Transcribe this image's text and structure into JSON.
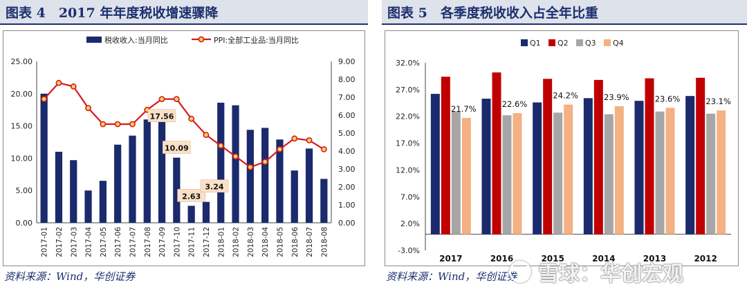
{
  "figure_left": {
    "title": "图表 4　2017 年年度税收增速骤降",
    "source": "资料来源：Wind，华创证券",
    "chart_data": {
      "type": "bar",
      "categories": [
        "2017-01",
        "2017-02",
        "2017-03",
        "2017-04",
        "2017-05",
        "2017-06",
        "2017-07",
        "2017-08",
        "2017-09",
        "2017-10",
        "2017-11",
        "2017-12",
        "2018-01",
        "2018-02",
        "2018-03",
        "2018-04",
        "2018-05",
        "2018-06",
        "2018-07",
        "2018-08"
      ],
      "series": [
        {
          "name": "税收收入:当月同比",
          "kind": "bar",
          "axis": "left",
          "color": "#1a2a6c",
          "values": [
            20.0,
            11.0,
            9.7,
            5.0,
            6.5,
            12.1,
            13.5,
            16.0,
            17.56,
            10.09,
            2.63,
            3.24,
            18.6,
            18.2,
            14.4,
            14.7,
            12.9,
            8.1,
            11.5,
            6.8
          ]
        },
        {
          "name": "PPI:全部工业品:当月同比",
          "kind": "line",
          "axis": "right",
          "color": "#d7191c",
          "values": [
            6.9,
            7.8,
            7.6,
            6.4,
            5.5,
            5.5,
            5.5,
            6.3,
            6.9,
            6.9,
            5.8,
            4.9,
            4.3,
            3.7,
            3.1,
            3.4,
            4.1,
            4.7,
            4.6,
            4.1
          ]
        }
      ],
      "callouts": [
        {
          "index": 8,
          "label": "17.56"
        },
        {
          "index": 9,
          "label": "10.09"
        },
        {
          "index": 10,
          "label": "2.63"
        },
        {
          "index": 11,
          "label": "3.24"
        }
      ],
      "ylim_left": [
        0,
        25
      ],
      "yticks_left": [
        "0.00",
        "5.00",
        "10.00",
        "15.00",
        "20.00",
        "25.00"
      ],
      "ylim_right": [
        0,
        9
      ],
      "yticks_right": [
        "0.00",
        "1.00",
        "2.00",
        "3.00",
        "4.00",
        "5.00",
        "6.00",
        "7.00",
        "8.00",
        "9.00"
      ],
      "legend_position": "top",
      "grid": false
    }
  },
  "figure_right": {
    "title": "图表 5　各季度税收收入占全年比重",
    "source": "资料来源：Wind，华创证券",
    "chart_data": {
      "type": "bar",
      "categories": [
        "2017",
        "2016",
        "2015",
        "2014",
        "2013",
        "2012"
      ],
      "series": [
        {
          "name": "Q1",
          "color": "#1a2a6c",
          "values": [
            26.2,
            25.3,
            24.6,
            25.4,
            24.9,
            25.8
          ]
        },
        {
          "name": "Q2",
          "color": "#c00000",
          "values": [
            29.4,
            30.2,
            29.0,
            28.8,
            29.1,
            29.2
          ]
        },
        {
          "name": "Q3",
          "color": "#a6a6a6",
          "values": [
            22.9,
            22.2,
            22.7,
            22.4,
            22.9,
            22.5
          ]
        },
        {
          "name": "Q4",
          "color": "#f4b183",
          "values": [
            21.7,
            22.6,
            24.2,
            23.9,
            23.6,
            23.1
          ]
        }
      ],
      "data_labels": [
        "21.7%",
        "22.6%",
        "24.2%",
        "23.9%",
        "23.6%",
        "23.1%"
      ],
      "ylim": [
        -3,
        32
      ],
      "yticks": [
        "-3.0%",
        "2.0%",
        "7.0%",
        "12.0%",
        "17.0%",
        "22.0%",
        "27.0%",
        "32.0%"
      ],
      "legend_position": "top-left",
      "grid": false
    }
  },
  "watermark": "雪球：华创宏观"
}
